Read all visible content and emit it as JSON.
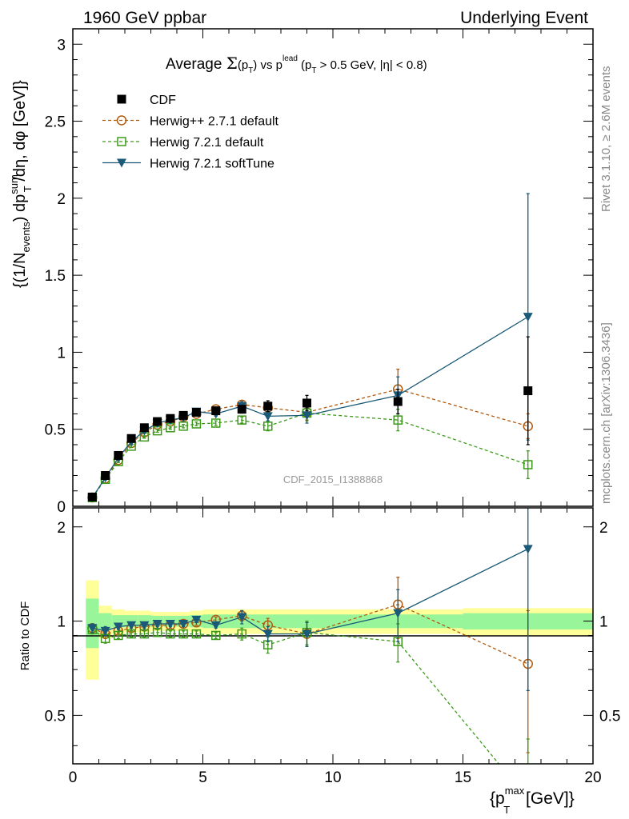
{
  "header": {
    "left": "1960 GeV ppbar",
    "right": "Underlying Event"
  },
  "side_labels": {
    "rivet": "Rivet 3.1.10, ≥ 2.6M events",
    "mcplots": "mcplots.cern.ch [arXiv:1306.3436]"
  },
  "watermark": "CDF_2015_I1388868",
  "title": {
    "prefix": "Average ",
    "sigma": "Σ",
    "open": "(p",
    "sub_T": "T",
    "close": ")",
    "vs": " vs p",
    "sup_lead": "lead",
    "cut": " (p",
    "cut_rest": " > 0.5 GeV, |η| < 0.8)"
  },
  "ylabel_top": {
    "a": "{(1/N",
    "sub_events": "events",
    "b": ") dp",
    "sup_sum": "sum",
    "sub_T": "T",
    "c": " /dη, dφ [GeV]}"
  },
  "ylabel_bottom": "Ratio to CDF",
  "xlabel": {
    "a": "{p",
    "sup_max": "max",
    "sub_T": "T",
    "b": " [GeV]}"
  },
  "legend": [
    {
      "label": "CDF",
      "color": "#000000",
      "marker": "square-filled",
      "dash": false
    },
    {
      "label": "Herwig++ 2.7.1 default",
      "color": "#b05a10",
      "marker": "circle-open",
      "dash": true
    },
    {
      "label": "Herwig 7.2.1 default",
      "color": "#3c9a1a",
      "marker": "square-open",
      "dash": true
    },
    {
      "label": "Herwig 7.2.1 softTune",
      "color": "#1a5a78",
      "marker": "triangle-down",
      "dash": false
    }
  ],
  "chart_data": {
    "type": "scatter",
    "xlim": [
      0,
      20
    ],
    "ylim_main": [
      0,
      3.1
    ],
    "ylim_ratio": [
      0.35,
      2.3
    ],
    "x_ticks": [
      "0",
      "5",
      "10",
      "15",
      "20"
    ],
    "y_ticks_main": [
      "0",
      "0.5",
      "1",
      "1.5",
      "2",
      "2.5",
      "3"
    ],
    "y_ticks_ratio": [
      "0.5",
      "1",
      "2"
    ],
    "x": [
      0.75,
      1.25,
      1.75,
      2.25,
      2.75,
      3.25,
      3.75,
      4.25,
      4.75,
      5.5,
      6.5,
      7.5,
      9.0,
      12.5,
      17.5
    ],
    "data": {
      "name": "CDF",
      "y": [
        0.06,
        0.2,
        0.33,
        0.44,
        0.51,
        0.55,
        0.57,
        0.59,
        0.61,
        0.62,
        0.63,
        0.65,
        0.67,
        0.68,
        0.75
      ],
      "err": [
        0.005,
        0.01,
        0.012,
        0.012,
        0.012,
        0.013,
        0.014,
        0.015,
        0.016,
        0.02,
        0.025,
        0.035,
        0.05,
        0.08,
        0.35
      ],
      "band_inner": [
        0.18,
        0.06,
        0.045,
        0.045,
        0.045,
        0.04,
        0.04,
        0.04,
        0.045,
        0.05,
        0.05,
        0.05,
        0.05,
        0.05,
        0.06
      ],
      "band_outer": [
        0.35,
        0.12,
        0.09,
        0.08,
        0.08,
        0.07,
        0.07,
        0.07,
        0.08,
        0.09,
        0.09,
        0.09,
        0.09,
        0.09,
        0.1
      ]
    },
    "series": [
      {
        "name": "Herwig++ 2.7.1 default",
        "y": [
          0.057,
          0.18,
          0.3,
          0.41,
          0.48,
          0.53,
          0.55,
          0.58,
          0.6,
          0.63,
          0.66,
          0.64,
          0.61,
          0.76,
          0.52
        ],
        "err": [
          0.003,
          0.005,
          0.006,
          0.007,
          0.008,
          0.009,
          0.01,
          0.011,
          0.012,
          0.015,
          0.02,
          0.03,
          0.05,
          0.13,
          0.08
        ]
      },
      {
        "name": "Herwig 7.2.1 default",
        "y": [
          0.056,
          0.175,
          0.29,
          0.39,
          0.45,
          0.49,
          0.51,
          0.52,
          0.535,
          0.54,
          0.56,
          0.52,
          0.605,
          0.56,
          0.27
        ],
        "err": [
          0.003,
          0.005,
          0.006,
          0.007,
          0.008,
          0.009,
          0.01,
          0.011,
          0.012,
          0.015,
          0.02,
          0.03,
          0.05,
          0.07,
          0.09
        ]
      },
      {
        "name": "Herwig 7.2.1 softTune",
        "y": [
          0.057,
          0.185,
          0.315,
          0.42,
          0.49,
          0.54,
          0.56,
          0.575,
          0.615,
          0.6,
          0.65,
          0.585,
          0.59,
          0.72,
          1.23
        ],
        "err": [
          0.003,
          0.005,
          0.006,
          0.007,
          0.008,
          0.009,
          0.01,
          0.011,
          0.012,
          0.015,
          0.03,
          0.03,
          0.05,
          0.12,
          0.8
        ]
      }
    ],
    "ratio_panel": {
      "reference": "CDF",
      "series": [
        {
          "name": "Herwig++ 2.7.1 default",
          "y": [
            0.95,
            0.91,
            0.93,
            0.95,
            0.96,
            0.97,
            0.97,
            0.98,
            0.99,
            1.01,
            1.04,
            0.97,
            0.91,
            1.13,
            0.73
          ],
          "err": [
            0.03,
            0.03,
            0.02,
            0.02,
            0.02,
            0.02,
            0.02,
            0.02,
            0.02,
            0.02,
            0.04,
            0.05,
            0.08,
            0.25,
            0.35
          ]
        },
        {
          "name": "Herwig 7.2.1 default",
          "y": [
            0.94,
            0.88,
            0.9,
            0.91,
            0.91,
            0.92,
            0.91,
            0.91,
            0.91,
            0.9,
            0.91,
            0.84,
            0.92,
            0.86,
            0.27
          ],
          "err": [
            0.03,
            0.03,
            0.02,
            0.02,
            0.02,
            0.02,
            0.02,
            0.02,
            0.02,
            0.02,
            0.04,
            0.05,
            0.08,
            0.12,
            0.15
          ]
        },
        {
          "name": "Herwig 7.2.1 softTune",
          "y": [
            0.95,
            0.93,
            0.96,
            0.97,
            0.97,
            0.98,
            0.98,
            0.98,
            1.01,
            0.97,
            1.03,
            0.91,
            0.91,
            1.06,
            1.7
          ],
          "err": [
            0.03,
            0.03,
            0.02,
            0.02,
            0.02,
            0.02,
            0.02,
            0.02,
            0.02,
            0.02,
            0.05,
            0.05,
            0.08,
            0.2,
            1.1
          ]
        }
      ]
    }
  }
}
